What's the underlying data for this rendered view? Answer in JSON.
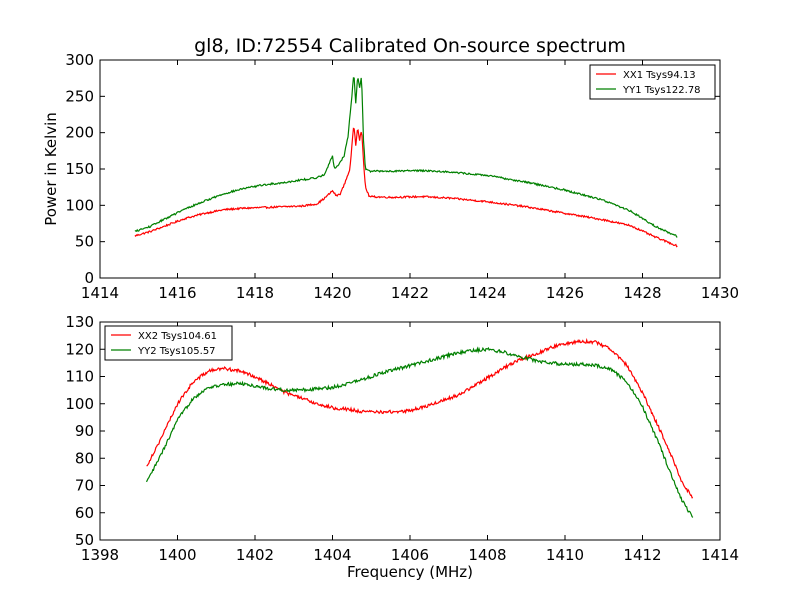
{
  "figure": {
    "title": "gl8, ID:72554 Calibrated On-source spectrum"
  },
  "chart_data": [
    {
      "type": "line",
      "title": "gl8, ID:72554 Calibrated On-source spectrum",
      "xlabel": "",
      "ylabel": "Power in Kelvin",
      "xlim": [
        1414,
        1430
      ],
      "ylim": [
        0,
        300
      ],
      "xticks": [
        "1414",
        "1416",
        "1418",
        "1420",
        "1422",
        "1424",
        "1426",
        "1428",
        "1430"
      ],
      "yticks": [
        "0",
        "50",
        "100",
        "150",
        "200",
        "250",
        "300"
      ],
      "legend_position": "top-right",
      "grid": false,
      "series": [
        {
          "name": "XX1 Tsys94.13",
          "color": "#ff0000",
          "points": [
            [
              1414.9,
              58
            ],
            [
              1415.3,
              64
            ],
            [
              1415.7,
              72
            ],
            [
              1416.2,
              82
            ],
            [
              1416.7,
              89
            ],
            [
              1417.2,
              94
            ],
            [
              1417.7,
              96
            ],
            [
              1418.2,
              97
            ],
            [
              1418.7,
              98
            ],
            [
              1419.2,
              99
            ],
            [
              1419.6,
              102
            ],
            [
              1419.8,
              110
            ],
            [
              1420.0,
              120
            ],
            [
              1420.1,
              113
            ],
            [
              1420.2,
              116
            ],
            [
              1420.3,
              128
            ],
            [
              1420.45,
              150
            ],
            [
              1420.55,
              212
            ],
            [
              1420.6,
              183
            ],
            [
              1420.65,
              208
            ],
            [
              1420.7,
              190
            ],
            [
              1420.75,
              205
            ],
            [
              1420.8,
              160
            ],
            [
              1420.85,
              125
            ],
            [
              1420.95,
              112
            ],
            [
              1421.5,
              111
            ],
            [
              1422.3,
              112
            ],
            [
              1423.0,
              110
            ],
            [
              1424.0,
              105
            ],
            [
              1425.0,
              98
            ],
            [
              1426.0,
              89
            ],
            [
              1427.0,
              80
            ],
            [
              1427.7,
              72
            ],
            [
              1428.3,
              57
            ],
            [
              1428.9,
              44
            ]
          ]
        },
        {
          "name": "YY1 Tsys122.78",
          "color": "#008000",
          "points": [
            [
              1414.9,
              64
            ],
            [
              1415.3,
              71
            ],
            [
              1415.7,
              82
            ],
            [
              1416.2,
              95
            ],
            [
              1416.7,
              106
            ],
            [
              1417.2,
              116
            ],
            [
              1417.7,
              123
            ],
            [
              1418.2,
              128
            ],
            [
              1418.7,
              131
            ],
            [
              1419.2,
              135
            ],
            [
              1419.6,
              138
            ],
            [
              1419.8,
              143
            ],
            [
              1420.0,
              168
            ],
            [
              1420.05,
              150
            ],
            [
              1420.15,
              156
            ],
            [
              1420.3,
              168
            ],
            [
              1420.4,
              195
            ],
            [
              1420.5,
              250
            ],
            [
              1420.55,
              283
            ],
            [
              1420.6,
              240
            ],
            [
              1420.65,
              278
            ],
            [
              1420.7,
              262
            ],
            [
              1420.75,
              278
            ],
            [
              1420.8,
              190
            ],
            [
              1420.85,
              150
            ],
            [
              1420.95,
              147
            ],
            [
              1421.5,
              147
            ],
            [
              1422.3,
              148
            ],
            [
              1423.0,
              146
            ],
            [
              1424.0,
              141
            ],
            [
              1425.0,
              132
            ],
            [
              1426.0,
              121
            ],
            [
              1427.0,
              107
            ],
            [
              1427.7,
              92
            ],
            [
              1428.3,
              72
            ],
            [
              1428.9,
              57
            ]
          ]
        }
      ]
    },
    {
      "type": "line",
      "title": "",
      "xlabel": "Frequency (MHz)",
      "ylabel": "",
      "xlim": [
        1398,
        1414
      ],
      "ylim": [
        50,
        130
      ],
      "xticks": [
        "1398",
        "1400",
        "1402",
        "1404",
        "1406",
        "1408",
        "1410",
        "1412",
        "1414"
      ],
      "yticks": [
        "50",
        "60",
        "70",
        "80",
        "90",
        "100",
        "110",
        "120",
        "130"
      ],
      "legend_position": "top-left",
      "grid": false,
      "series": [
        {
          "name": "XX2 Tsys104.61",
          "color": "#ff0000",
          "points": [
            [
              1399.2,
              77
            ],
            [
              1399.6,
              88
            ],
            [
              1400.0,
              100
            ],
            [
              1400.4,
              108
            ],
            [
              1400.8,
              112
            ],
            [
              1401.2,
              113
            ],
            [
              1401.6,
              112
            ],
            [
              1402.0,
              110
            ],
            [
              1402.4,
              107
            ],
            [
              1402.8,
              104
            ],
            [
              1403.2,
              102
            ],
            [
              1403.6,
              100
            ],
            [
              1404.0,
              98.5
            ],
            [
              1404.4,
              98
            ],
            [
              1404.8,
              97
            ],
            [
              1405.2,
              97
            ],
            [
              1405.6,
              97
            ],
            [
              1406.0,
              97.5
            ],
            [
              1406.4,
              99
            ],
            [
              1406.8,
              101
            ],
            [
              1407.2,
              103
            ],
            [
              1407.6,
              106
            ],
            [
              1408.0,
              109.5
            ],
            [
              1408.4,
              113
            ],
            [
              1408.8,
              116
            ],
            [
              1409.2,
              118
            ],
            [
              1409.6,
              120.5
            ],
            [
              1410.0,
              122
            ],
            [
              1410.4,
              123
            ],
            [
              1410.8,
              122.5
            ],
            [
              1411.2,
              120
            ],
            [
              1411.6,
              114
            ],
            [
              1412.0,
              104
            ],
            [
              1412.4,
              92
            ],
            [
              1412.8,
              79
            ],
            [
              1413.0,
              72
            ],
            [
              1413.3,
              65
            ]
          ]
        },
        {
          "name": "YY2 Tsys105.57",
          "color": "#008000",
          "points": [
            [
              1399.2,
              71
            ],
            [
              1399.6,
              82
            ],
            [
              1400.0,
              94
            ],
            [
              1400.4,
              102
            ],
            [
              1400.8,
              106
            ],
            [
              1401.2,
              107
            ],
            [
              1401.6,
              107.5
            ],
            [
              1402.0,
              106.5
            ],
            [
              1402.4,
              105.5
            ],
            [
              1402.8,
              105
            ],
            [
              1403.2,
              105
            ],
            [
              1403.6,
              105.5
            ],
            [
              1404.0,
              106
            ],
            [
              1404.4,
              107.5
            ],
            [
              1404.8,
              109
            ],
            [
              1405.2,
              111
            ],
            [
              1405.6,
              112.5
            ],
            [
              1406.0,
              114
            ],
            [
              1406.4,
              115.5
            ],
            [
              1406.8,
              117
            ],
            [
              1407.2,
              118.5
            ],
            [
              1407.6,
              119.5
            ],
            [
              1408.0,
              120
            ],
            [
              1408.4,
              119
            ],
            [
              1408.8,
              117.5
            ],
            [
              1409.2,
              116
            ],
            [
              1409.6,
              115
            ],
            [
              1410.0,
              114.5
            ],
            [
              1410.4,
              114.5
            ],
            [
              1410.8,
              114
            ],
            [
              1411.2,
              112.5
            ],
            [
              1411.6,
              108
            ],
            [
              1412.0,
              99
            ],
            [
              1412.4,
              86
            ],
            [
              1412.8,
              72
            ],
            [
              1413.0,
              65
            ],
            [
              1413.3,
              58
            ]
          ]
        }
      ]
    }
  ]
}
